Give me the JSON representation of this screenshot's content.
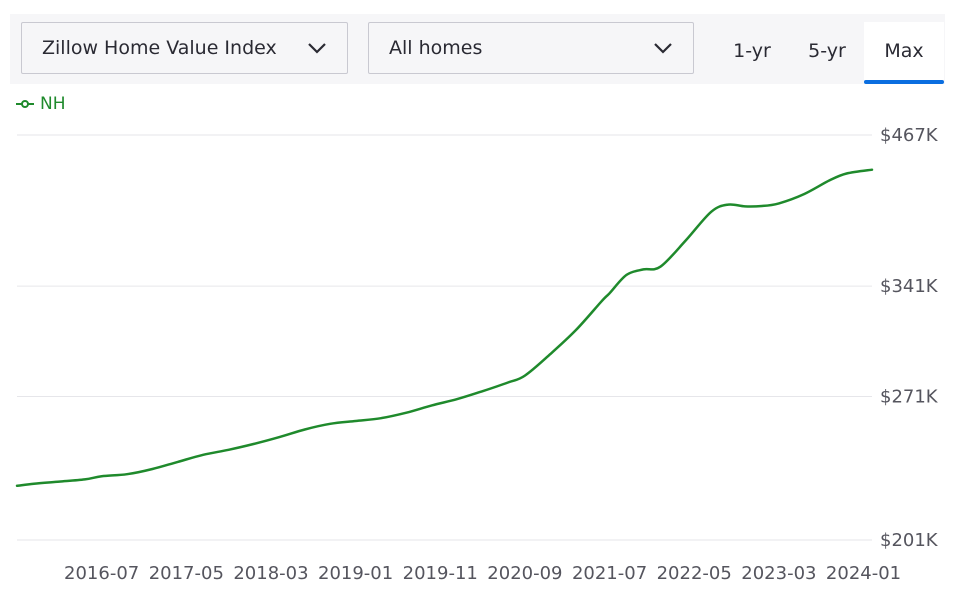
{
  "controls": {
    "metric": "Zillow Home Value Index",
    "home_type": "All homes",
    "ranges": [
      "1-yr",
      "5-yr",
      "Max"
    ],
    "active_range": "Max"
  },
  "colors": {
    "series": "#1f8a2c",
    "accent": "#0a6ee0",
    "grid": "#e6e6ea"
  },
  "chart_data": {
    "type": "line",
    "series": [
      {
        "name": "NH",
        "points": [
          [
            "2015-09",
            225000
          ],
          [
            "2015-11",
            226000
          ],
          [
            "2016-02",
            227000
          ],
          [
            "2016-05",
            228000
          ],
          [
            "2016-07",
            229500
          ],
          [
            "2016-10",
            230500
          ],
          [
            "2017-01",
            233000
          ],
          [
            "2017-04",
            236500
          ],
          [
            "2017-07",
            240000
          ],
          [
            "2017-10",
            242500
          ],
          [
            "2018-01",
            245500
          ],
          [
            "2018-04",
            249000
          ],
          [
            "2018-07",
            253000
          ],
          [
            "2018-10",
            256000
          ],
          [
            "2019-01",
            257500
          ],
          [
            "2019-04",
            259000
          ],
          [
            "2019-07",
            262000
          ],
          [
            "2019-10",
            266000
          ],
          [
            "2020-01",
            269500
          ],
          [
            "2020-04",
            274000
          ],
          [
            "2020-07",
            279000
          ],
          [
            "2020-09",
            283000
          ],
          [
            "2020-12",
            296000
          ],
          [
            "2021-03",
            311000
          ],
          [
            "2021-06",
            330000
          ],
          [
            "2021-07",
            336000
          ],
          [
            "2021-09",
            349000
          ],
          [
            "2021-11",
            353000
          ],
          [
            "2022-01",
            355000
          ],
          [
            "2022-04",
            375000
          ],
          [
            "2022-07",
            398000
          ],
          [
            "2022-09",
            404000
          ],
          [
            "2022-11",
            402500
          ],
          [
            "2023-01",
            402800
          ],
          [
            "2023-03",
            405000
          ],
          [
            "2023-06",
            413000
          ],
          [
            "2023-09",
            425000
          ],
          [
            "2023-11",
            431000
          ],
          [
            "2024-02",
            434500
          ]
        ]
      }
    ],
    "x_ticks": [
      "2016-07",
      "2017-05",
      "2018-03",
      "2019-01",
      "2019-11",
      "2020-09",
      "2021-07",
      "2022-05",
      "2023-03",
      "2024-01"
    ],
    "y_ticks": [
      {
        "value": 201000,
        "label": "$201K"
      },
      {
        "value": 271000,
        "label": "$271K"
      },
      {
        "value": 341000,
        "label": "$341K"
      },
      {
        "value": 467000,
        "label": "$467K"
      }
    ],
    "ylim": [
      201000,
      467000
    ],
    "xlim": [
      "2015-09",
      "2024-02"
    ],
    "y_scale": "log",
    "grid": true,
    "legend": "top-left"
  }
}
